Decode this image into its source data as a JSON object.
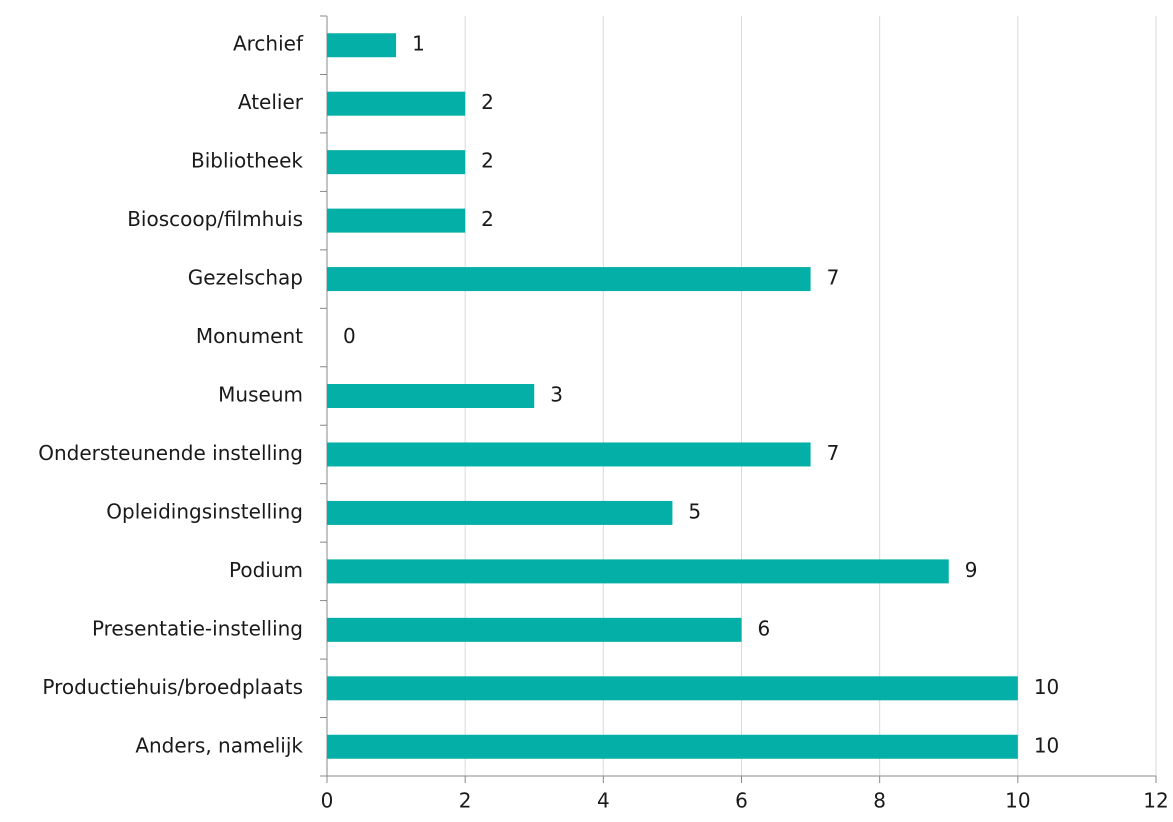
{
  "chart_data": {
    "type": "bar",
    "orientation": "horizontal",
    "categories": [
      "Archief",
      "Atelier",
      "Bibliotheek",
      "Bioscoop/filmhuis",
      "Gezelschap",
      "Monument",
      "Museum",
      "Ondersteunende instelling",
      "Opleidingsinstelling",
      "Podium",
      "Presentatie-instelling",
      "Productiehuis/broedplaats",
      "Anders, namelijk"
    ],
    "values": [
      1,
      2,
      2,
      2,
      7,
      0,
      3,
      7,
      5,
      9,
      6,
      10,
      10
    ],
    "color": "#04afa7",
    "xlim": [
      0,
      12
    ],
    "xticks": [
      0,
      2,
      4,
      6,
      8,
      10,
      12
    ],
    "grid": true
  }
}
